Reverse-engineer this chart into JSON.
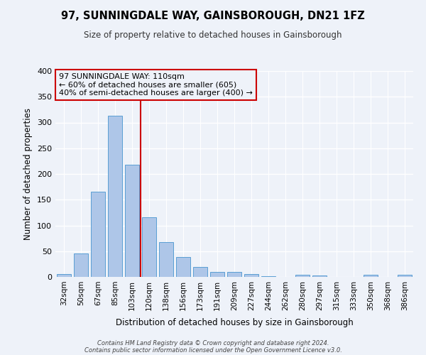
{
  "title": "97, SUNNINGDALE WAY, GAINSBOROUGH, DN21 1FZ",
  "subtitle": "Size of property relative to detached houses in Gainsborough",
  "xlabel": "Distribution of detached houses by size in Gainsborough",
  "ylabel": "Number of detached properties",
  "bar_labels": [
    "32sqm",
    "50sqm",
    "67sqm",
    "85sqm",
    "103sqm",
    "120sqm",
    "138sqm",
    "156sqm",
    "173sqm",
    "191sqm",
    "209sqm",
    "227sqm",
    "244sqm",
    "262sqm",
    "280sqm",
    "297sqm",
    "315sqm",
    "333sqm",
    "350sqm",
    "368sqm",
    "386sqm"
  ],
  "bar_heights": [
    5,
    46,
    165,
    313,
    218,
    116,
    67,
    39,
    19,
    10,
    10,
    5,
    2,
    0,
    4,
    3,
    0,
    0,
    4,
    0,
    4
  ],
  "bar_color": "#aec6e8",
  "bar_edge_color": "#5a9fd4",
  "vline_x": 4.5,
  "vline_color": "#cc0000",
  "ylim": [
    0,
    400
  ],
  "yticks": [
    0,
    50,
    100,
    150,
    200,
    250,
    300,
    350,
    400
  ],
  "annotation_line1": "97 SUNNINGDALE WAY: 110sqm",
  "annotation_line2": "← 60% of detached houses are smaller (605)",
  "annotation_line3": "40% of semi-detached houses are larger (400) →",
  "annotation_box_color": "#cc0000",
  "bg_color": "#eef2f9",
  "footer1": "Contains HM Land Registry data © Crown copyright and database right 2024.",
  "footer2": "Contains public sector information licensed under the Open Government Licence v3.0."
}
